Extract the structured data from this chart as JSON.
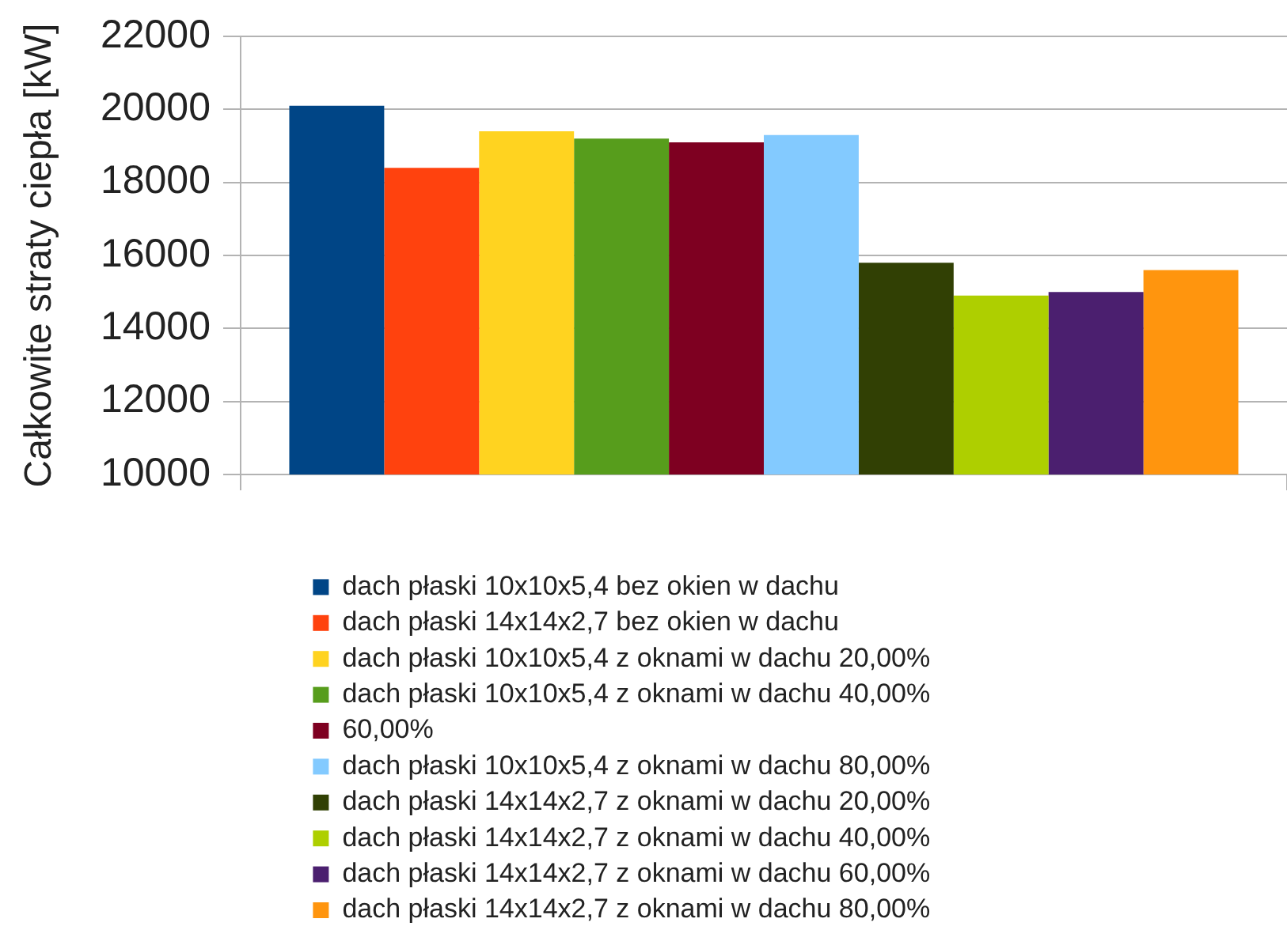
{
  "chart_data": {
    "type": "bar",
    "ylabel": "Całkowite straty ciepła [kW]",
    "categories": [
      null
    ],
    "series": [
      {
        "name": "dach płaski 10x10x5,4 bez okien w dachu",
        "color": "#004586",
        "values": [
          20100
        ]
      },
      {
        "name": "dach płaski 14x14x2,7 bez okien w dachu",
        "color": "#ff420e",
        "values": [
          18400
        ]
      },
      {
        "name": "dach płaski 10x10x5,4 z oknami w dachu 20,00%",
        "color": "#ffd320",
        "values": [
          19400
        ]
      },
      {
        "name": "dach płaski 10x10x5,4 z oknami w dachu 40,00%",
        "color": "#579d1c",
        "values": [
          19200
        ]
      },
      {
        "name": "60,00%",
        "color": "#7e0021",
        "values": [
          19100
        ]
      },
      {
        "name": "dach płaski 10x10x5,4 z oknami w dachu 80,00%",
        "color": "#83caff",
        "values": [
          19300
        ]
      },
      {
        "name": "dach płaski 14x14x2,7 z oknami w dachu 20,00%",
        "color": "#314004",
        "values": [
          15800
        ]
      },
      {
        "name": "dach płaski 14x14x2,7 z oknami w dachu 40,00%",
        "color": "#aecf00",
        "values": [
          14900
        ]
      },
      {
        "name": "dach płaski 14x14x2,7 z oknami w dachu 60,00%",
        "color": "#4b1f6f",
        "values": [
          15000
        ]
      },
      {
        "name": "dach płaski 14x14x2,7 z oknami w dachu 80,00%",
        "color": "#ff950e",
        "values": [
          15600
        ]
      }
    ],
    "ylim": [
      10000,
      22000
    ],
    "yticks": [
      10000,
      12000,
      14000,
      16000,
      18000,
      20000,
      22000
    ],
    "grid": "y",
    "legend": "bottom"
  }
}
